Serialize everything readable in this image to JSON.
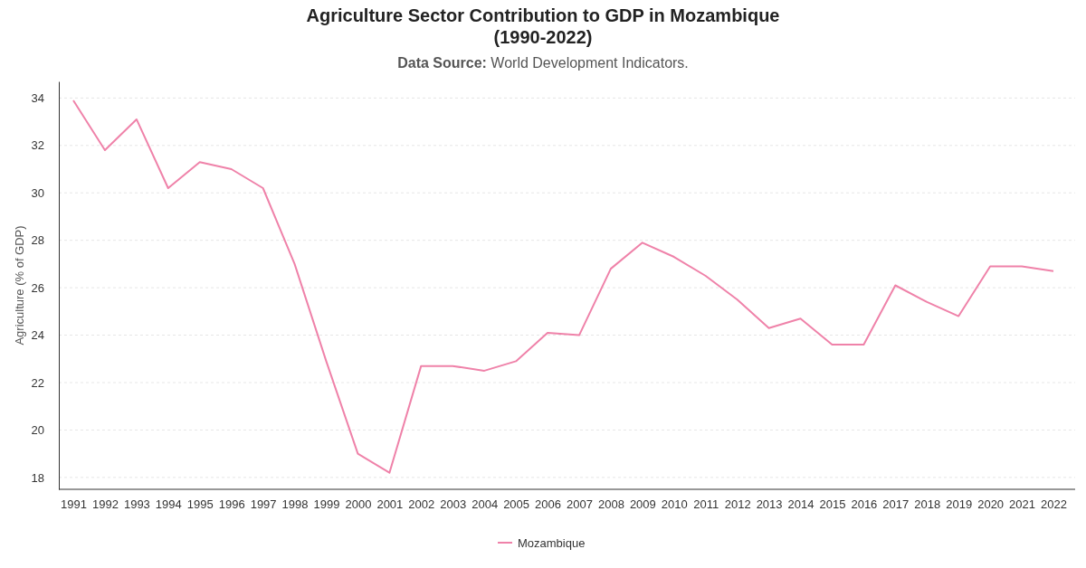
{
  "chart_data": {
    "type": "line",
    "title": "Agriculture Sector Contribution to GDP in Mozambique\n(1990-2022)",
    "subtitle": "Data Source: World Development Indicators.",
    "ylabel": "Agriculture (% of GDP)",
    "categories": [
      "1991",
      "1992",
      "1993",
      "1994",
      "1995",
      "1996",
      "1997",
      "1998",
      "1999",
      "2000",
      "2001",
      "2002",
      "2003",
      "2004",
      "2005",
      "2006",
      "2007",
      "2008",
      "2009",
      "2010",
      "2011",
      "2012",
      "2013",
      "2014",
      "2015",
      "2016",
      "2017",
      "2018",
      "2019",
      "2020",
      "2021",
      "2022"
    ],
    "series": [
      {
        "name": "Mozambique",
        "color": "#ef82a9",
        "values": [
          33.9,
          31.8,
          33.1,
          30.2,
          31.3,
          31.0,
          30.2,
          27.0,
          22.9,
          19.0,
          18.2,
          22.7,
          22.7,
          22.5,
          22.9,
          24.1,
          24.0,
          26.8,
          27.9,
          27.3,
          26.5,
          25.5,
          24.3,
          24.7,
          23.6,
          23.6,
          26.1,
          25.4,
          24.8,
          26.9,
          26.9,
          26.7
        ]
      }
    ],
    "ylim": [
      17.5,
      34.7
    ],
    "yticks": [
      18,
      20,
      22,
      24,
      26,
      28,
      30,
      32,
      34
    ],
    "grid": "y",
    "legend": "bottom"
  }
}
